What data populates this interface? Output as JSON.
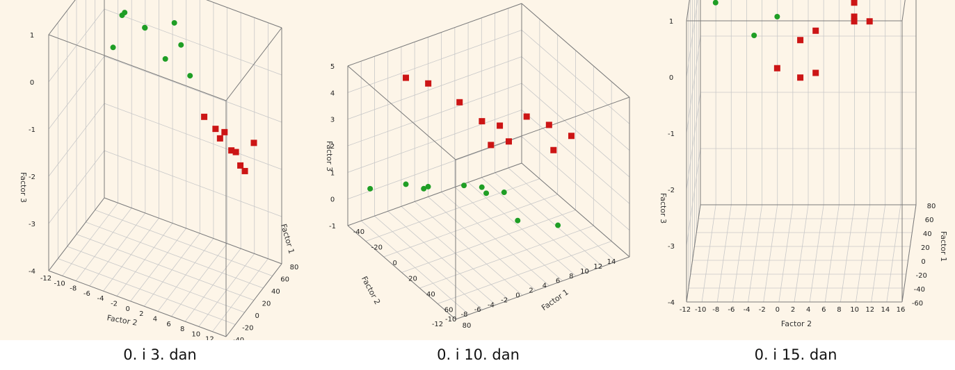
{
  "colors": {
    "green": "#1f9e25",
    "red": "#cc1515"
  },
  "captions": [
    "0. i 3. dan",
    "0. i 10. dan",
    "0. i 15. dan"
  ],
  "chart_data": [
    {
      "type": "scatter",
      "caption": "0. i 3. dan",
      "axes": {
        "x": "Factor 2",
        "y": "Factor 1",
        "z": "Factor 3"
      },
      "xlim": [
        -12,
        14
      ],
      "ylim": [
        -40,
        80
      ],
      "zlim": [
        -5,
        1
      ],
      "xticks": [
        "-12",
        "-10",
        "-8",
        "-6",
        "-4",
        "-2",
        "0",
        "2",
        "4",
        "6",
        "8",
        "10",
        "12",
        "14"
      ],
      "yticks": [
        "-40",
        "-20",
        "0",
        "20",
        "40",
        "60",
        "80"
      ],
      "zticks": [
        "1",
        "0",
        "-1",
        "-2",
        "-3",
        "-4"
      ],
      "series": [
        {
          "color": "green",
          "points": [
            [
              -10,
              70,
              0.4
            ],
            [
              -8,
              65,
              0.2
            ],
            [
              -6,
              30,
              0.8
            ],
            [
              -2,
              20,
              0.9
            ],
            [
              2,
              25,
              1.2
            ],
            [
              4,
              10,
              1.0
            ],
            [
              -4,
              50,
              0.3
            ],
            [
              -8,
              40,
              -0.3
            ],
            [
              0,
              35,
              0.0
            ],
            [
              6,
              0,
              0.5
            ]
          ]
        },
        {
          "color": "red",
          "points": [
            [
              4,
              60,
              -1.6
            ],
            [
              6,
              55,
              -1.7
            ],
            [
              7,
              50,
              -1.8
            ],
            [
              9,
              45,
              -1.9
            ],
            [
              10,
              40,
              -1.8
            ],
            [
              11,
              35,
              -2.0
            ],
            [
              12,
              30,
              -2.0
            ],
            [
              8,
              45,
              -1.5
            ],
            [
              14,
              20,
              -1.0
            ]
          ]
        }
      ]
    },
    {
      "type": "scatter",
      "caption": "0. i 10. dan",
      "axes": {
        "x": "Factor 1",
        "y": "Factor 2",
        "z": "Factor 3"
      },
      "xlim": [
        -40,
        80
      ],
      "ylim": [
        -12,
        14
      ],
      "zlim": [
        -1,
        5
      ],
      "xticks": [
        "-40",
        "-20",
        "0",
        "20",
        "40",
        "60",
        "80"
      ],
      "yticks": [
        "-12",
        "-10",
        "-8",
        "-6",
        "-4",
        "-2",
        "0",
        "2",
        "4",
        "6",
        "8",
        "10",
        "12",
        "14"
      ],
      "zticks": [
        "5",
        "4",
        "3",
        "2",
        "1",
        "0",
        "-1"
      ],
      "series": [
        {
          "color": "red",
          "points": [
            [
              -20,
              -6,
              4.6
            ],
            [
              -10,
              -4,
              4.5
            ],
            [
              10,
              -2,
              4.2
            ],
            [
              20,
              0,
              3.6
            ],
            [
              25,
              2,
              3.4
            ],
            [
              30,
              0,
              3.0
            ],
            [
              35,
              2,
              3.1
            ],
            [
              40,
              4,
              4.0
            ],
            [
              50,
              6,
              3.8
            ],
            [
              60,
              8,
              3.5
            ],
            [
              55,
              6,
              3.0
            ]
          ]
        },
        {
          "color": "green",
          "points": [
            [
              -30,
              -10,
              0.5
            ],
            [
              -20,
              -6,
              0.6
            ],
            [
              -15,
              -4,
              0.4
            ],
            [
              -25,
              -2,
              0.0
            ],
            [
              0,
              0,
              0.6
            ],
            [
              5,
              2,
              0.5
            ],
            [
              -5,
              4,
              -0.2
            ],
            [
              0,
              6,
              -0.2
            ],
            [
              30,
              4,
              -0.2
            ],
            [
              45,
              8,
              -0.3
            ]
          ]
        }
      ]
    },
    {
      "type": "scatter",
      "caption": "0. i 15. dan",
      "axes": {
        "x": "Factor 2",
        "y": "Factor 1",
        "z": "Factor 3"
      },
      "xlim": [
        -12,
        16
      ],
      "ylim": [
        -60,
        80
      ],
      "zlim": [
        -5,
        1
      ],
      "xticks": [
        "-12",
        "-10",
        "-8",
        "-6",
        "-4",
        "-2",
        "0",
        "2",
        "4",
        "6",
        "8",
        "10",
        "12",
        "14",
        "16"
      ],
      "yticks": [
        "-60",
        "-40",
        "-20",
        "0",
        "20",
        "40",
        "60",
        "80"
      ],
      "zticks": [
        "1",
        "0",
        "-1",
        "-2",
        "-3",
        "-4"
      ],
      "series": [
        {
          "color": "green",
          "points": [
            [
              -9,
              0,
              0.5
            ],
            [
              -3,
              0,
              1.8
            ],
            [
              0,
              0,
              2.1
            ],
            [
              -1,
              0,
              1.3
            ],
            [
              -4,
              0,
              1.0
            ],
            [
              -1,
              0,
              0.2
            ],
            [
              -4,
              0,
              -0.2
            ],
            [
              4,
              0,
              0.7
            ],
            [
              6,
              0,
              1.6
            ],
            [
              11,
              0,
              1.2
            ]
          ]
        },
        {
          "color": "red",
          "points": [
            [
              15,
              0,
              0.7
            ],
            [
              9,
              0,
              0.5
            ],
            [
              9,
              0,
              0.2
            ],
            [
              11,
              0,
              0.1
            ],
            [
              4,
              0,
              -0.1
            ],
            [
              2,
              0,
              -0.3
            ],
            [
              -1,
              0,
              -0.9
            ],
            [
              2,
              0,
              -1.1
            ],
            [
              4,
              0,
              -1.0
            ],
            [
              9,
              0,
              0.1
            ]
          ]
        }
      ]
    }
  ]
}
